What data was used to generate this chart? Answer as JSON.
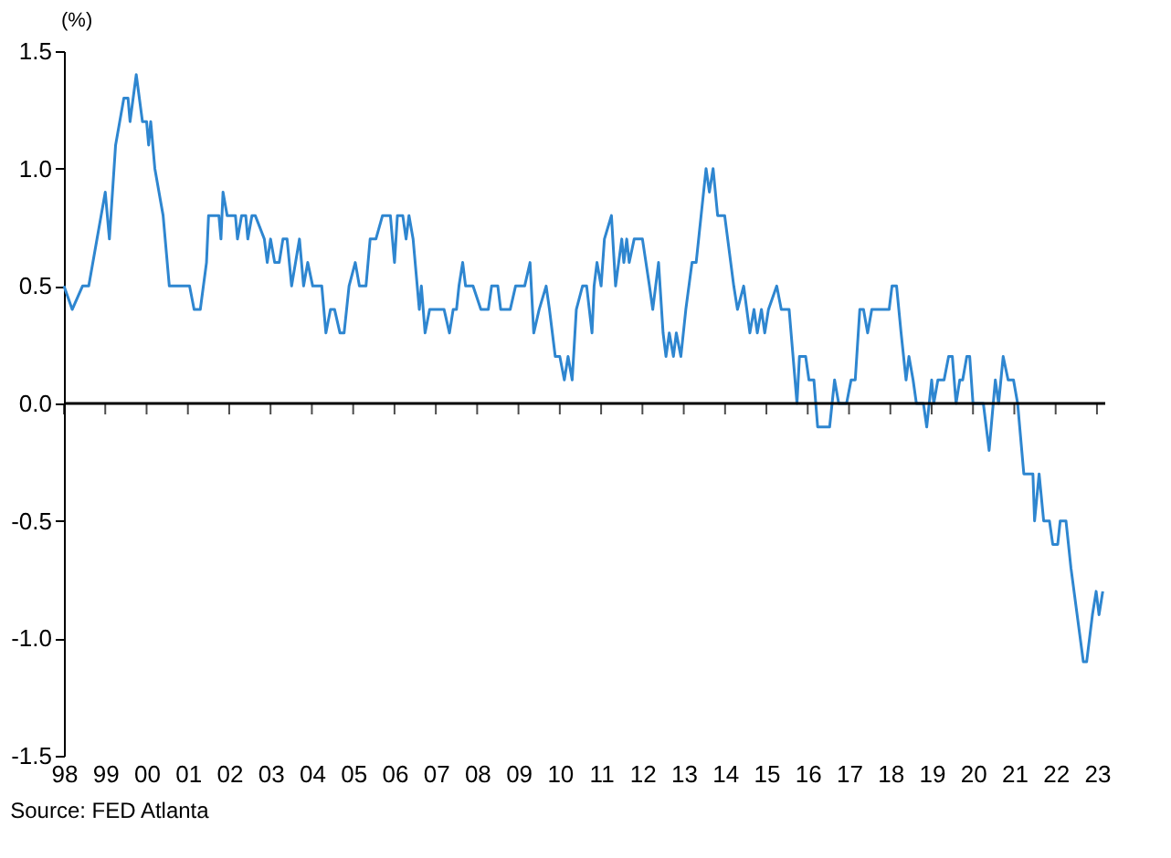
{
  "chart_data": {
    "type": "line",
    "ylabel": "(%)",
    "annotations": [
      "Source: FED Atlanta"
    ],
    "series": [
      {
        "color": "#2e86d0",
        "x": [
          1998.0,
          1998.2,
          1998.45,
          1998.6,
          1998.8,
          1999.0,
          1999.1,
          1999.25,
          1999.45,
          1999.55,
          1999.6,
          1999.75,
          1999.9,
          2000.0,
          2000.05,
          2000.1,
          2000.2,
          2000.4,
          2000.55,
          2001.04,
          2001.15,
          2001.3,
          2001.45,
          2001.5,
          2001.75,
          2001.8,
          2001.85,
          2001.95,
          2002.15,
          2002.2,
          2002.3,
          2002.4,
          2002.45,
          2002.55,
          2002.63,
          2002.85,
          2002.92,
          2003.0,
          2003.1,
          2003.21,
          2003.3,
          2003.4,
          2003.51,
          2003.7,
          2003.8,
          2003.9,
          2004.02,
          2004.24,
          2004.34,
          2004.45,
          2004.55,
          2004.68,
          2004.78,
          2004.9,
          2005.05,
          2005.15,
          2005.31,
          2005.41,
          2005.55,
          2005.71,
          2005.9,
          2006.0,
          2006.07,
          2006.2,
          2006.28,
          2006.35,
          2006.45,
          2006.6,
          2006.65,
          2006.74,
          2006.85,
          2007.2,
          2007.33,
          2007.42,
          2007.5,
          2007.56,
          2007.65,
          2007.72,
          2007.9,
          2008.09,
          2008.27,
          2008.35,
          2008.5,
          2008.57,
          2008.8,
          2008.93,
          2009.15,
          2009.28,
          2009.37,
          2009.5,
          2009.67,
          2009.75,
          2009.89,
          2010.0,
          2010.11,
          2010.2,
          2010.3,
          2010.4,
          2010.55,
          2010.65,
          2010.78,
          2010.83,
          2010.9,
          2011.0,
          2011.08,
          2011.25,
          2011.35,
          2011.5,
          2011.55,
          2011.62,
          2011.68,
          2011.8,
          2012.0,
          2012.17,
          2012.25,
          2012.39,
          2012.5,
          2012.57,
          2012.65,
          2012.75,
          2012.82,
          2012.93,
          2013.05,
          2013.2,
          2013.3,
          2013.42,
          2013.54,
          2013.62,
          2013.71,
          2013.82,
          2013.99,
          2014.21,
          2014.3,
          2014.45,
          2014.6,
          2014.7,
          2014.78,
          2014.88,
          2014.96,
          2015.05,
          2015.25,
          2015.36,
          2015.55,
          2015.74,
          2015.8,
          2015.95,
          2016.03,
          2016.15,
          2016.24,
          2016.53,
          2016.65,
          2016.75,
          2016.94,
          2017.05,
          2017.15,
          2017.26,
          2017.35,
          2017.45,
          2017.55,
          2017.97,
          2018.04,
          2018.15,
          2018.26,
          2018.38,
          2018.45,
          2018.55,
          2018.63,
          2018.8,
          2018.88,
          2019.0,
          2019.05,
          2019.15,
          2019.3,
          2019.41,
          2019.5,
          2019.59,
          2019.68,
          2019.75,
          2019.85,
          2019.92,
          2020.0,
          2020.25,
          2020.39,
          2020.54,
          2020.62,
          2020.73,
          2020.85,
          2020.98,
          2021.08,
          2021.23,
          2021.45,
          2021.49,
          2021.6,
          2021.71,
          2021.85,
          2021.93,
          2022.05,
          2022.11,
          2022.25,
          2022.37,
          2022.67,
          2022.75,
          2022.89,
          2022.98,
          2023.05,
          2023.14
        ],
        "values": [
          0.5,
          0.4,
          0.5,
          0.5,
          0.7,
          0.9,
          0.7,
          1.1,
          1.3,
          1.3,
          1.2,
          1.4,
          1.2,
          1.2,
          1.1,
          1.2,
          1.0,
          0.8,
          0.5,
          0.5,
          0.4,
          0.4,
          0.6,
          0.8,
          0.8,
          0.7,
          0.9,
          0.8,
          0.8,
          0.7,
          0.8,
          0.8,
          0.7,
          0.8,
          0.8,
          0.7,
          0.6,
          0.7,
          0.6,
          0.6,
          0.7,
          0.7,
          0.5,
          0.7,
          0.5,
          0.6,
          0.5,
          0.5,
          0.3,
          0.4,
          0.4,
          0.3,
          0.3,
          0.5,
          0.6,
          0.5,
          0.5,
          0.7,
          0.7,
          0.8,
          0.8,
          0.6,
          0.8,
          0.8,
          0.7,
          0.8,
          0.7,
          0.4,
          0.5,
          0.3,
          0.4,
          0.4,
          0.3,
          0.4,
          0.4,
          0.5,
          0.6,
          0.5,
          0.5,
          0.4,
          0.4,
          0.5,
          0.5,
          0.4,
          0.4,
          0.5,
          0.5,
          0.6,
          0.3,
          0.4,
          0.5,
          0.4,
          0.2,
          0.2,
          0.1,
          0.2,
          0.1,
          0.4,
          0.5,
          0.5,
          0.3,
          0.5,
          0.6,
          0.5,
          0.7,
          0.8,
          0.5,
          0.7,
          0.6,
          0.7,
          0.6,
          0.7,
          0.7,
          0.5,
          0.4,
          0.6,
          0.3,
          0.2,
          0.3,
          0.2,
          0.3,
          0.2,
          0.4,
          0.6,
          0.6,
          0.8,
          1.0,
          0.9,
          1.0,
          0.8,
          0.8,
          0.5,
          0.4,
          0.5,
          0.3,
          0.4,
          0.3,
          0.4,
          0.3,
          0.4,
          0.5,
          0.4,
          0.4,
          0.0,
          0.2,
          0.2,
          0.1,
          0.1,
          -0.1,
          -0.1,
          0.1,
          0.0,
          0.0,
          0.1,
          0.1,
          0.4,
          0.4,
          0.3,
          0.4,
          0.4,
          0.5,
          0.5,
          0.3,
          0.1,
          0.2,
          0.1,
          0.0,
          0.0,
          -0.1,
          0.1,
          0.0,
          0.1,
          0.1,
          0.2,
          0.2,
          0.0,
          0.1,
          0.1,
          0.2,
          0.2,
          0.0,
          0.0,
          -0.2,
          0.1,
          0.0,
          0.2,
          0.1,
          0.1,
          0.0,
          -0.3,
          -0.3,
          -0.5,
          -0.3,
          -0.5,
          -0.5,
          -0.6,
          -0.6,
          -0.5,
          -0.5,
          -0.7,
          -1.1,
          -1.1,
          -0.9,
          -0.8,
          -0.9,
          -0.8
        ]
      }
    ],
    "xlim": [
      1998,
      2023.2
    ],
    "xticks": [
      {
        "value": 1998,
        "label": "98"
      },
      {
        "value": 1999,
        "label": "99"
      },
      {
        "value": 2000,
        "label": "00"
      },
      {
        "value": 2001,
        "label": "01"
      },
      {
        "value": 2002,
        "label": "02"
      },
      {
        "value": 2003,
        "label": "03"
      },
      {
        "value": 2004,
        "label": "04"
      },
      {
        "value": 2005,
        "label": "05"
      },
      {
        "value": 2006,
        "label": "06"
      },
      {
        "value": 2007,
        "label": "07"
      },
      {
        "value": 2008,
        "label": "08"
      },
      {
        "value": 2009,
        "label": "09"
      },
      {
        "value": 2010,
        "label": "10"
      },
      {
        "value": 2011,
        "label": "11"
      },
      {
        "value": 2012,
        "label": "12"
      },
      {
        "value": 2013,
        "label": "13"
      },
      {
        "value": 2014,
        "label": "14"
      },
      {
        "value": 2015,
        "label": "15"
      },
      {
        "value": 2016,
        "label": "16"
      },
      {
        "value": 2017,
        "label": "17"
      },
      {
        "value": 2018,
        "label": "18"
      },
      {
        "value": 2019,
        "label": "19"
      },
      {
        "value": 2020,
        "label": "20"
      },
      {
        "value": 2021,
        "label": "21"
      },
      {
        "value": 2022,
        "label": "22"
      },
      {
        "value": 2023,
        "label": "23"
      }
    ],
    "ylim": [
      -1.5,
      1.5
    ],
    "yticks": [
      {
        "value": -1.5,
        "label": "-1.5"
      },
      {
        "value": -1,
        "label": "-1.0"
      },
      {
        "value": -0.5,
        "label": "-0.5"
      },
      {
        "value": 0,
        "label": "0.0"
      },
      {
        "value": 0.5,
        "label": "0.5"
      },
      {
        "value": 1,
        "label": "1.0"
      },
      {
        "value": 1.5,
        "label": "1.5"
      }
    ],
    "ref_lines": [
      {
        "axis": "y",
        "value": 0,
        "color": "#000000"
      }
    ],
    "grid": false,
    "line_style": "solid",
    "marker": "none"
  }
}
